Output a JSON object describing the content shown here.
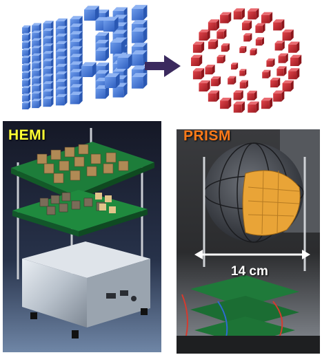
{
  "hemi_label": "HEMI",
  "prism_label": "PRISM",
  "scale_label": "14 cm",
  "colors": {
    "hemi_cube_blue": "#3f74d6",
    "prism_cube_red": "#c8262d",
    "arrow_dark_purple": "#3b2a5e",
    "hemi_label_yellow": "#ffff33",
    "prism_label_orange": "#ff7a1a"
  }
}
